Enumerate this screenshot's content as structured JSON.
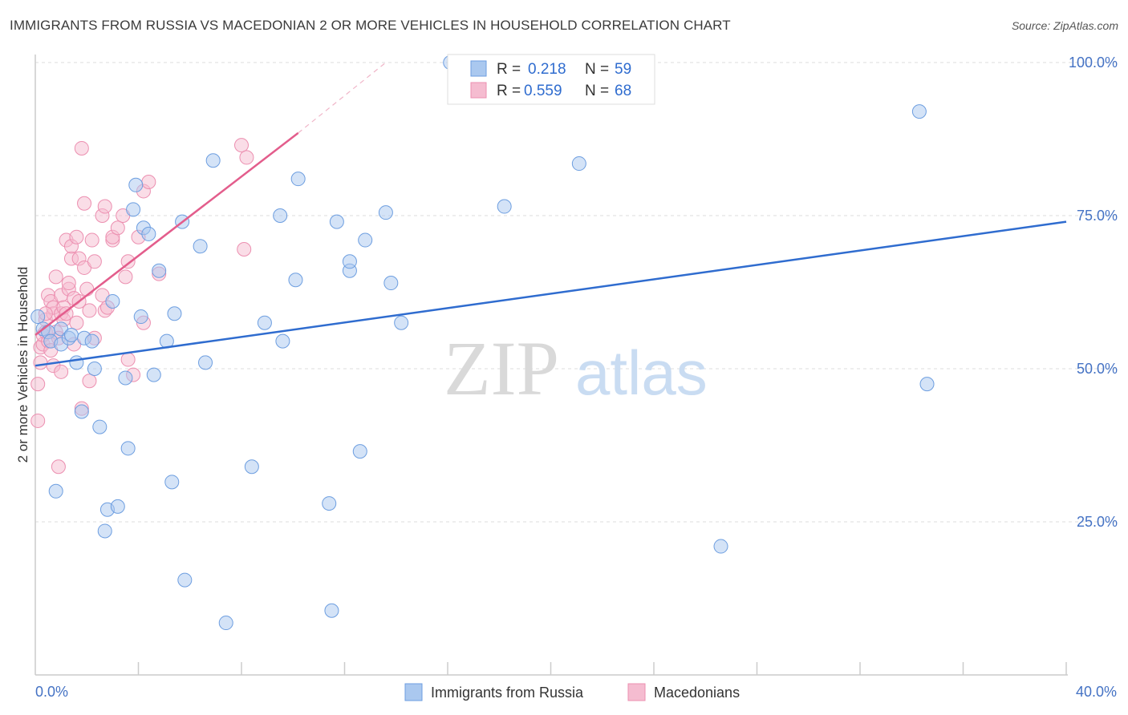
{
  "title": "IMMIGRANTS FROM RUSSIA VS MACEDONIAN 2 OR MORE VEHICLES IN HOUSEHOLD CORRELATION CHART",
  "source": "Source: ZipAtlas.com",
  "watermark": {
    "zip": "ZIP",
    "atlas": "atlas"
  },
  "colors": {
    "blue_fill": "#aac8ef",
    "blue_stroke": "#6d9ee0",
    "blue_line": "#2f6ccf",
    "pink_fill": "#f5bcd0",
    "pink_stroke": "#ec8fb0",
    "pink_line": "#e35d8c",
    "grid": "#dddddd",
    "axis": "#cccccc",
    "tick_text": "#4472c4"
  },
  "legend": {
    "rows": [
      {
        "r_label": "R = ",
        "r_value": "0.218",
        "n_label": "N = ",
        "n_value": "59",
        "color": "blue"
      },
      {
        "r_label": "R = ",
        "r_value": "0.559",
        "n_label": "N = ",
        "n_value": "68",
        "color": "pink"
      }
    ]
  },
  "bottom_legend": [
    {
      "label": "Immigrants from Russia",
      "color": "blue"
    },
    {
      "label": "Macedonians",
      "color": "pink"
    }
  ],
  "chart_data": {
    "type": "scatter",
    "title": "IMMIGRANTS FROM RUSSIA VS MACEDONIAN 2 OR MORE VEHICLES IN HOUSEHOLD CORRELATION CHART",
    "xlabel": "",
    "ylabel": "2 or more Vehicles in Household",
    "xlim": [
      0,
      40
    ],
    "ylim": [
      0,
      100
    ],
    "x_tick_labels": [
      {
        "value": 0,
        "label": "0.0%"
      },
      {
        "value": 40,
        "label": "40.0%"
      }
    ],
    "y_tick_labels": [
      {
        "value": 100,
        "label": "100.0%"
      },
      {
        "value": 75,
        "label": "75.0%"
      },
      {
        "value": 50,
        "label": "50.0%"
      },
      {
        "value": 25,
        "label": "25.0%"
      }
    ],
    "grid": true,
    "series": [
      {
        "name": "Immigrants from Russia",
        "color": "blue",
        "R": 0.218,
        "N": 59,
        "trend": {
          "x": [
            0,
            40
          ],
          "y": [
            50.5,
            74.0
          ]
        },
        "points": [
          [
            0.1,
            58.5
          ],
          [
            0.3,
            56.5
          ],
          [
            0.5,
            56.0
          ],
          [
            0.6,
            54.5
          ],
          [
            0.8,
            30.0
          ],
          [
            1.0,
            54.0
          ],
          [
            1.0,
            56.5
          ],
          [
            1.3,
            55.0
          ],
          [
            1.4,
            55.5
          ],
          [
            1.6,
            51.0
          ],
          [
            1.8,
            43.0
          ],
          [
            1.9,
            55.0
          ],
          [
            2.2,
            54.5
          ],
          [
            2.3,
            50.0
          ],
          [
            2.5,
            40.5
          ],
          [
            2.7,
            23.5
          ],
          [
            2.8,
            27.0
          ],
          [
            3.0,
            61.0
          ],
          [
            3.2,
            27.5
          ],
          [
            3.5,
            48.5
          ],
          [
            3.6,
            37.0
          ],
          [
            3.8,
            76.0
          ],
          [
            3.9,
            80.0
          ],
          [
            4.1,
            58.5
          ],
          [
            4.2,
            73.0
          ],
          [
            4.4,
            72.0
          ],
          [
            4.6,
            49.0
          ],
          [
            4.8,
            66.0
          ],
          [
            5.1,
            54.5
          ],
          [
            5.3,
            31.5
          ],
          [
            5.4,
            59.0
          ],
          [
            5.7,
            74.0
          ],
          [
            5.8,
            15.5
          ],
          [
            6.4,
            70.0
          ],
          [
            6.6,
            51.0
          ],
          [
            6.9,
            84.0
          ],
          [
            7.4,
            8.5
          ],
          [
            8.4,
            34.0
          ],
          [
            8.9,
            57.5
          ],
          [
            9.5,
            75.0
          ],
          [
            9.6,
            54.5
          ],
          [
            10.1,
            64.5
          ],
          [
            10.2,
            81.0
          ],
          [
            11.4,
            28.0
          ],
          [
            11.5,
            10.5
          ],
          [
            11.7,
            74.0
          ],
          [
            12.2,
            66.0
          ],
          [
            12.2,
            67.5
          ],
          [
            12.6,
            36.5
          ],
          [
            12.8,
            71.0
          ],
          [
            13.6,
            75.5
          ],
          [
            13.8,
            64.0
          ],
          [
            14.2,
            57.5
          ],
          [
            16.1,
            100.0
          ],
          [
            18.2,
            76.5
          ],
          [
            21.1,
            83.5
          ],
          [
            26.6,
            21.0
          ],
          [
            34.3,
            92.0
          ],
          [
            34.6,
            47.5
          ]
        ]
      },
      {
        "name": "Macedonians",
        "color": "pink",
        "R": 0.559,
        "N": 68,
        "trend": {
          "x": [
            0,
            10.2
          ],
          "y": [
            55.5,
            88.5
          ]
        },
        "trend_dashed": {
          "x": [
            10.2,
            13.6
          ],
          "y": [
            88.5,
            100.0
          ]
        },
        "points": [
          [
            0.1,
            41.5
          ],
          [
            0.1,
            47.5
          ],
          [
            0.2,
            51.0
          ],
          [
            0.2,
            53.5
          ],
          [
            0.3,
            54.0
          ],
          [
            0.3,
            55.5
          ],
          [
            0.4,
            56.0
          ],
          [
            0.4,
            58.0
          ],
          [
            0.5,
            54.5
          ],
          [
            0.5,
            62.0
          ],
          [
            0.6,
            53.0
          ],
          [
            0.6,
            61.0
          ],
          [
            0.7,
            50.5
          ],
          [
            0.7,
            59.0
          ],
          [
            0.7,
            60.0
          ],
          [
            0.8,
            65.0
          ],
          [
            0.8,
            56.0
          ],
          [
            0.9,
            34.0
          ],
          [
            0.9,
            55.0
          ],
          [
            1.0,
            59.0
          ],
          [
            1.0,
            62.0
          ],
          [
            1.0,
            49.5
          ],
          [
            1.1,
            58.0
          ],
          [
            1.1,
            60.0
          ],
          [
            1.2,
            71.0
          ],
          [
            1.2,
            59.0
          ],
          [
            1.3,
            63.0
          ],
          [
            1.3,
            64.0
          ],
          [
            1.4,
            68.0
          ],
          [
            1.4,
            70.0
          ],
          [
            1.5,
            54.0
          ],
          [
            1.5,
            61.5
          ],
          [
            1.6,
            57.5
          ],
          [
            1.6,
            71.5
          ],
          [
            1.7,
            61.0
          ],
          [
            1.7,
            68.0
          ],
          [
            1.8,
            86.0
          ],
          [
            1.8,
            43.5
          ],
          [
            1.9,
            66.5
          ],
          [
            1.9,
            77.0
          ],
          [
            2.0,
            63.0
          ],
          [
            2.1,
            48.0
          ],
          [
            2.1,
            59.5
          ],
          [
            2.2,
            71.0
          ],
          [
            2.3,
            67.5
          ],
          [
            2.3,
            55.0
          ],
          [
            2.6,
            75.0
          ],
          [
            2.6,
            62.0
          ],
          [
            2.7,
            76.5
          ],
          [
            2.7,
            59.5
          ],
          [
            2.8,
            60.0
          ],
          [
            3.0,
            71.0
          ],
          [
            3.0,
            71.5
          ],
          [
            3.2,
            73.0
          ],
          [
            3.4,
            75.0
          ],
          [
            3.5,
            65.0
          ],
          [
            3.6,
            51.5
          ],
          [
            3.6,
            67.5
          ],
          [
            3.8,
            49.0
          ],
          [
            4.0,
            71.5
          ],
          [
            4.2,
            57.5
          ],
          [
            4.2,
            79.0
          ],
          [
            4.4,
            80.5
          ],
          [
            4.8,
            65.5
          ],
          [
            8.0,
            86.5
          ],
          [
            8.2,
            84.5
          ],
          [
            8.1,
            69.5
          ],
          [
            0.4,
            59.0
          ]
        ]
      }
    ]
  }
}
